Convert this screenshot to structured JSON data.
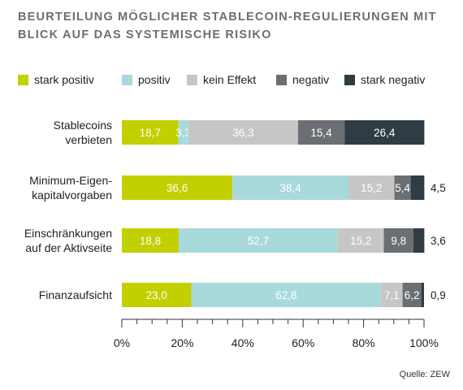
{
  "title": "BEURTEILUNG MÖGLICHER STABLECOIN-REGULIERUNGEN MIT BLICK AUF DAS SYSTEMISCHE RISIKO",
  "source": "Quelle: ZEW",
  "colors": {
    "stark_positiv": "#c2cf00",
    "positiv": "#a8dadc",
    "kein_effekt": "#c6c6c6",
    "negativ": "#6b6f73",
    "stark_negativ": "#2f3c44"
  },
  "chart_data": {
    "type": "bar",
    "orientation": "horizontal",
    "stacked": true,
    "categories": [
      [
        "Stablecoins",
        "verbieten"
      ],
      [
        "Minimum-Eigen-",
        "kapitalvorgaben"
      ],
      [
        "Einschränkungen",
        "auf der Aktivseite"
      ],
      [
        "Finanzaufsicht"
      ]
    ],
    "series": [
      {
        "name": "stark positiv",
        "values": [
          18.7,
          36.6,
          18.8,
          23.0
        ],
        "labels": [
          "18,7",
          "36,6",
          "18,8",
          "23,0"
        ]
      },
      {
        "name": "positiv",
        "values": [
          3.3,
          38.4,
          52.7,
          62.8
        ],
        "labels": [
          "3,3",
          "38,4",
          "52,7",
          "62,8"
        ]
      },
      {
        "name": "kein Effekt",
        "values": [
          36.3,
          15.2,
          15.2,
          7.1
        ],
        "labels": [
          "36,3",
          "15,2",
          "15,2",
          "7,1"
        ]
      },
      {
        "name": "negativ",
        "values": [
          15.4,
          5.4,
          9.8,
          6.2
        ],
        "labels": [
          "15,4",
          "5,4",
          "9,8",
          "6,2"
        ]
      },
      {
        "name": "stark negativ",
        "values": [
          26.4,
          4.5,
          3.6,
          0.9
        ],
        "labels": [
          "26,4",
          "4,5",
          "3,6",
          "0,9"
        ]
      }
    ],
    "xlim": [
      0,
      100
    ],
    "xticks": [
      0,
      20,
      40,
      60,
      80,
      100
    ],
    "xtick_labels": [
      "0%",
      "20%",
      "40%",
      "60%",
      "80%",
      "100%"
    ],
    "legend_position": "top",
    "grid": false
  }
}
